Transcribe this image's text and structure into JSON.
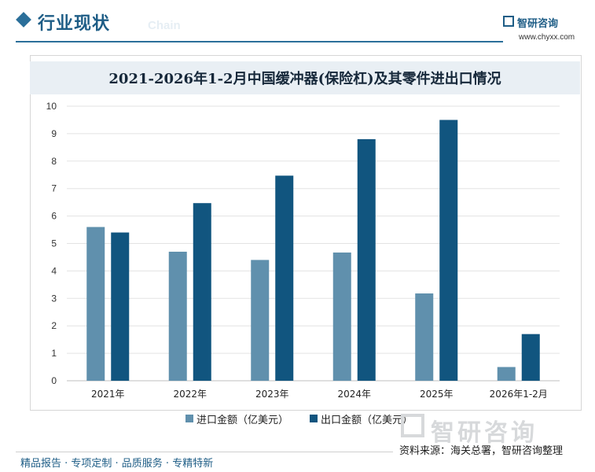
{
  "header": {
    "section_title": "行业现状",
    "section_subtitle": "Chain",
    "brand_name": "智研咨询",
    "brand_url": "www.chyxx.com"
  },
  "watermark": "智研咨询",
  "source": "资料来源：海关总署，智研咨询整理",
  "footer": "精品报告 · 专项定制 · 品质服务 · 专精特新",
  "colors": {
    "import": "#6090ad",
    "export": "#11557f",
    "accent": "#2b6f9a"
  },
  "chart_data": {
    "type": "bar",
    "title": "2021-2026年1-2月中国缓冲器(保险杠)及其零件进出口情况",
    "categories": [
      "2021年",
      "2022年",
      "2023年",
      "2024年",
      "2025年",
      "2026年1-2月"
    ],
    "series": [
      {
        "name": "进口金额（亿美元）",
        "values": [
          5.6,
          4.7,
          4.4,
          4.67,
          3.18,
          0.5
        ]
      },
      {
        "name": "出口金额（亿美元）",
        "values": [
          5.4,
          6.47,
          7.47,
          8.8,
          9.5,
          1.7
        ]
      }
    ],
    "ylim": [
      0,
      10
    ],
    "yticks": [
      "0",
      "1",
      "2",
      "3",
      "4",
      "5",
      "6",
      "7",
      "8",
      "9",
      "10"
    ],
    "xlabel": "",
    "ylabel": "",
    "grid": true,
    "legend": "bottom"
  }
}
